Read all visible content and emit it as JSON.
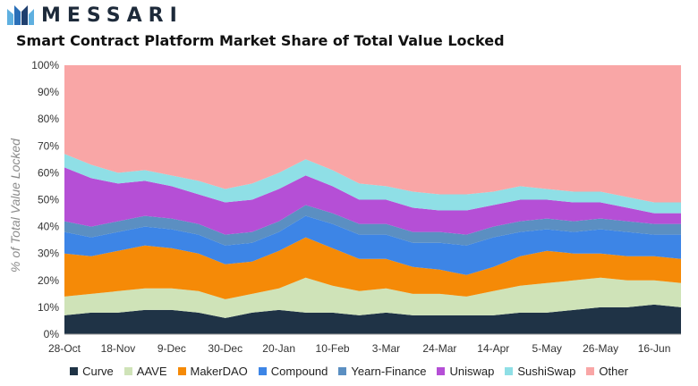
{
  "header": {
    "brand": "MESSARI",
    "title": "Smart Contract Platform Market Share of Total Value Locked"
  },
  "chart_data": {
    "type": "area",
    "stacked": true,
    "ylabel": "% of Total Value Locked",
    "ylim": [
      0,
      100
    ],
    "y_ticks": [
      "0%",
      "10%",
      "20%",
      "30%",
      "40%",
      "50%",
      "60%",
      "70%",
      "80%",
      "90%",
      "100%"
    ],
    "x": [
      "28-Oct",
      "11-Nov",
      "18-Nov",
      "2-Dec",
      "9-Dec",
      "23-Dec",
      "30-Dec",
      "13-Jan",
      "20-Jan",
      "3-Feb",
      "10-Feb",
      "24-Feb",
      "3-Mar",
      "17-Mar",
      "24-Mar",
      "7-Apr",
      "14-Apr",
      "28-Apr",
      "5-May",
      "19-May",
      "26-May",
      "9-Jun",
      "16-Jun",
      "30-Jun"
    ],
    "x_tick_labels": [
      "28-Oct",
      "18-Nov",
      "9-Dec",
      "30-Dec",
      "20-Jan",
      "10-Feb",
      "3-Mar",
      "24-Mar",
      "14-Apr",
      "5-May",
      "26-May",
      "16-Jun"
    ],
    "legend_position": "bottom",
    "series": [
      {
        "name": "Curve",
        "color": "#1f3346",
        "values": [
          7,
          8,
          8,
          9,
          9,
          8,
          6,
          8,
          9,
          8,
          8,
          7,
          8,
          7,
          7,
          7,
          7,
          8,
          8,
          9,
          10,
          10,
          11,
          10
        ]
      },
      {
        "name": "AAVE",
        "color": "#cfe3b8",
        "values": [
          7,
          7,
          8,
          8,
          8,
          8,
          7,
          7,
          8,
          13,
          10,
          9,
          9,
          8,
          8,
          7,
          9,
          10,
          11,
          11,
          11,
          10,
          9,
          9
        ]
      },
      {
        "name": "MakerDAO",
        "color": "#f58a07",
        "values": [
          16,
          14,
          15,
          16,
          15,
          14,
          13,
          12,
          14,
          15,
          14,
          12,
          11,
          10,
          9,
          8,
          9,
          11,
          12,
          10,
          9,
          9,
          9,
          9
        ]
      },
      {
        "name": "Compound",
        "color": "#3d85e6",
        "values": [
          8,
          7,
          7,
          7,
          7,
          7,
          7,
          7,
          7,
          8,
          9,
          9,
          9,
          9,
          10,
          11,
          11,
          9,
          8,
          8,
          9,
          9,
          8,
          9
        ]
      },
      {
        "name": "Yearn-Finance",
        "color": "#5b8fc2",
        "values": [
          4,
          4,
          4,
          4,
          4,
          4,
          4,
          4,
          4,
          4,
          4,
          4,
          4,
          4,
          4,
          4,
          4,
          4,
          4,
          4,
          4,
          4,
          4,
          4
        ]
      },
      {
        "name": "Uniswap",
        "color": "#b54fd6",
        "values": [
          20,
          18,
          14,
          13,
          12,
          11,
          12,
          12,
          12,
          11,
          10,
          9,
          9,
          9,
          8,
          9,
          8,
          8,
          7,
          7,
          6,
          5,
          4,
          4
        ]
      },
      {
        "name": "SushiSwap",
        "color": "#8fdfe6",
        "values": [
          5,
          5,
          4,
          4,
          4,
          5,
          5,
          6,
          6,
          6,
          6,
          6,
          5,
          6,
          6,
          6,
          5,
          5,
          4,
          4,
          4,
          4,
          4,
          4
        ]
      },
      {
        "name": "Other",
        "color": "#f9a6a6",
        "values": [
          33,
          37,
          40,
          39,
          41,
          43,
          46,
          44,
          40,
          35,
          39,
          44,
          45,
          47,
          48,
          48,
          47,
          45,
          46,
          47,
          47,
          49,
          51,
          51
        ]
      }
    ]
  }
}
